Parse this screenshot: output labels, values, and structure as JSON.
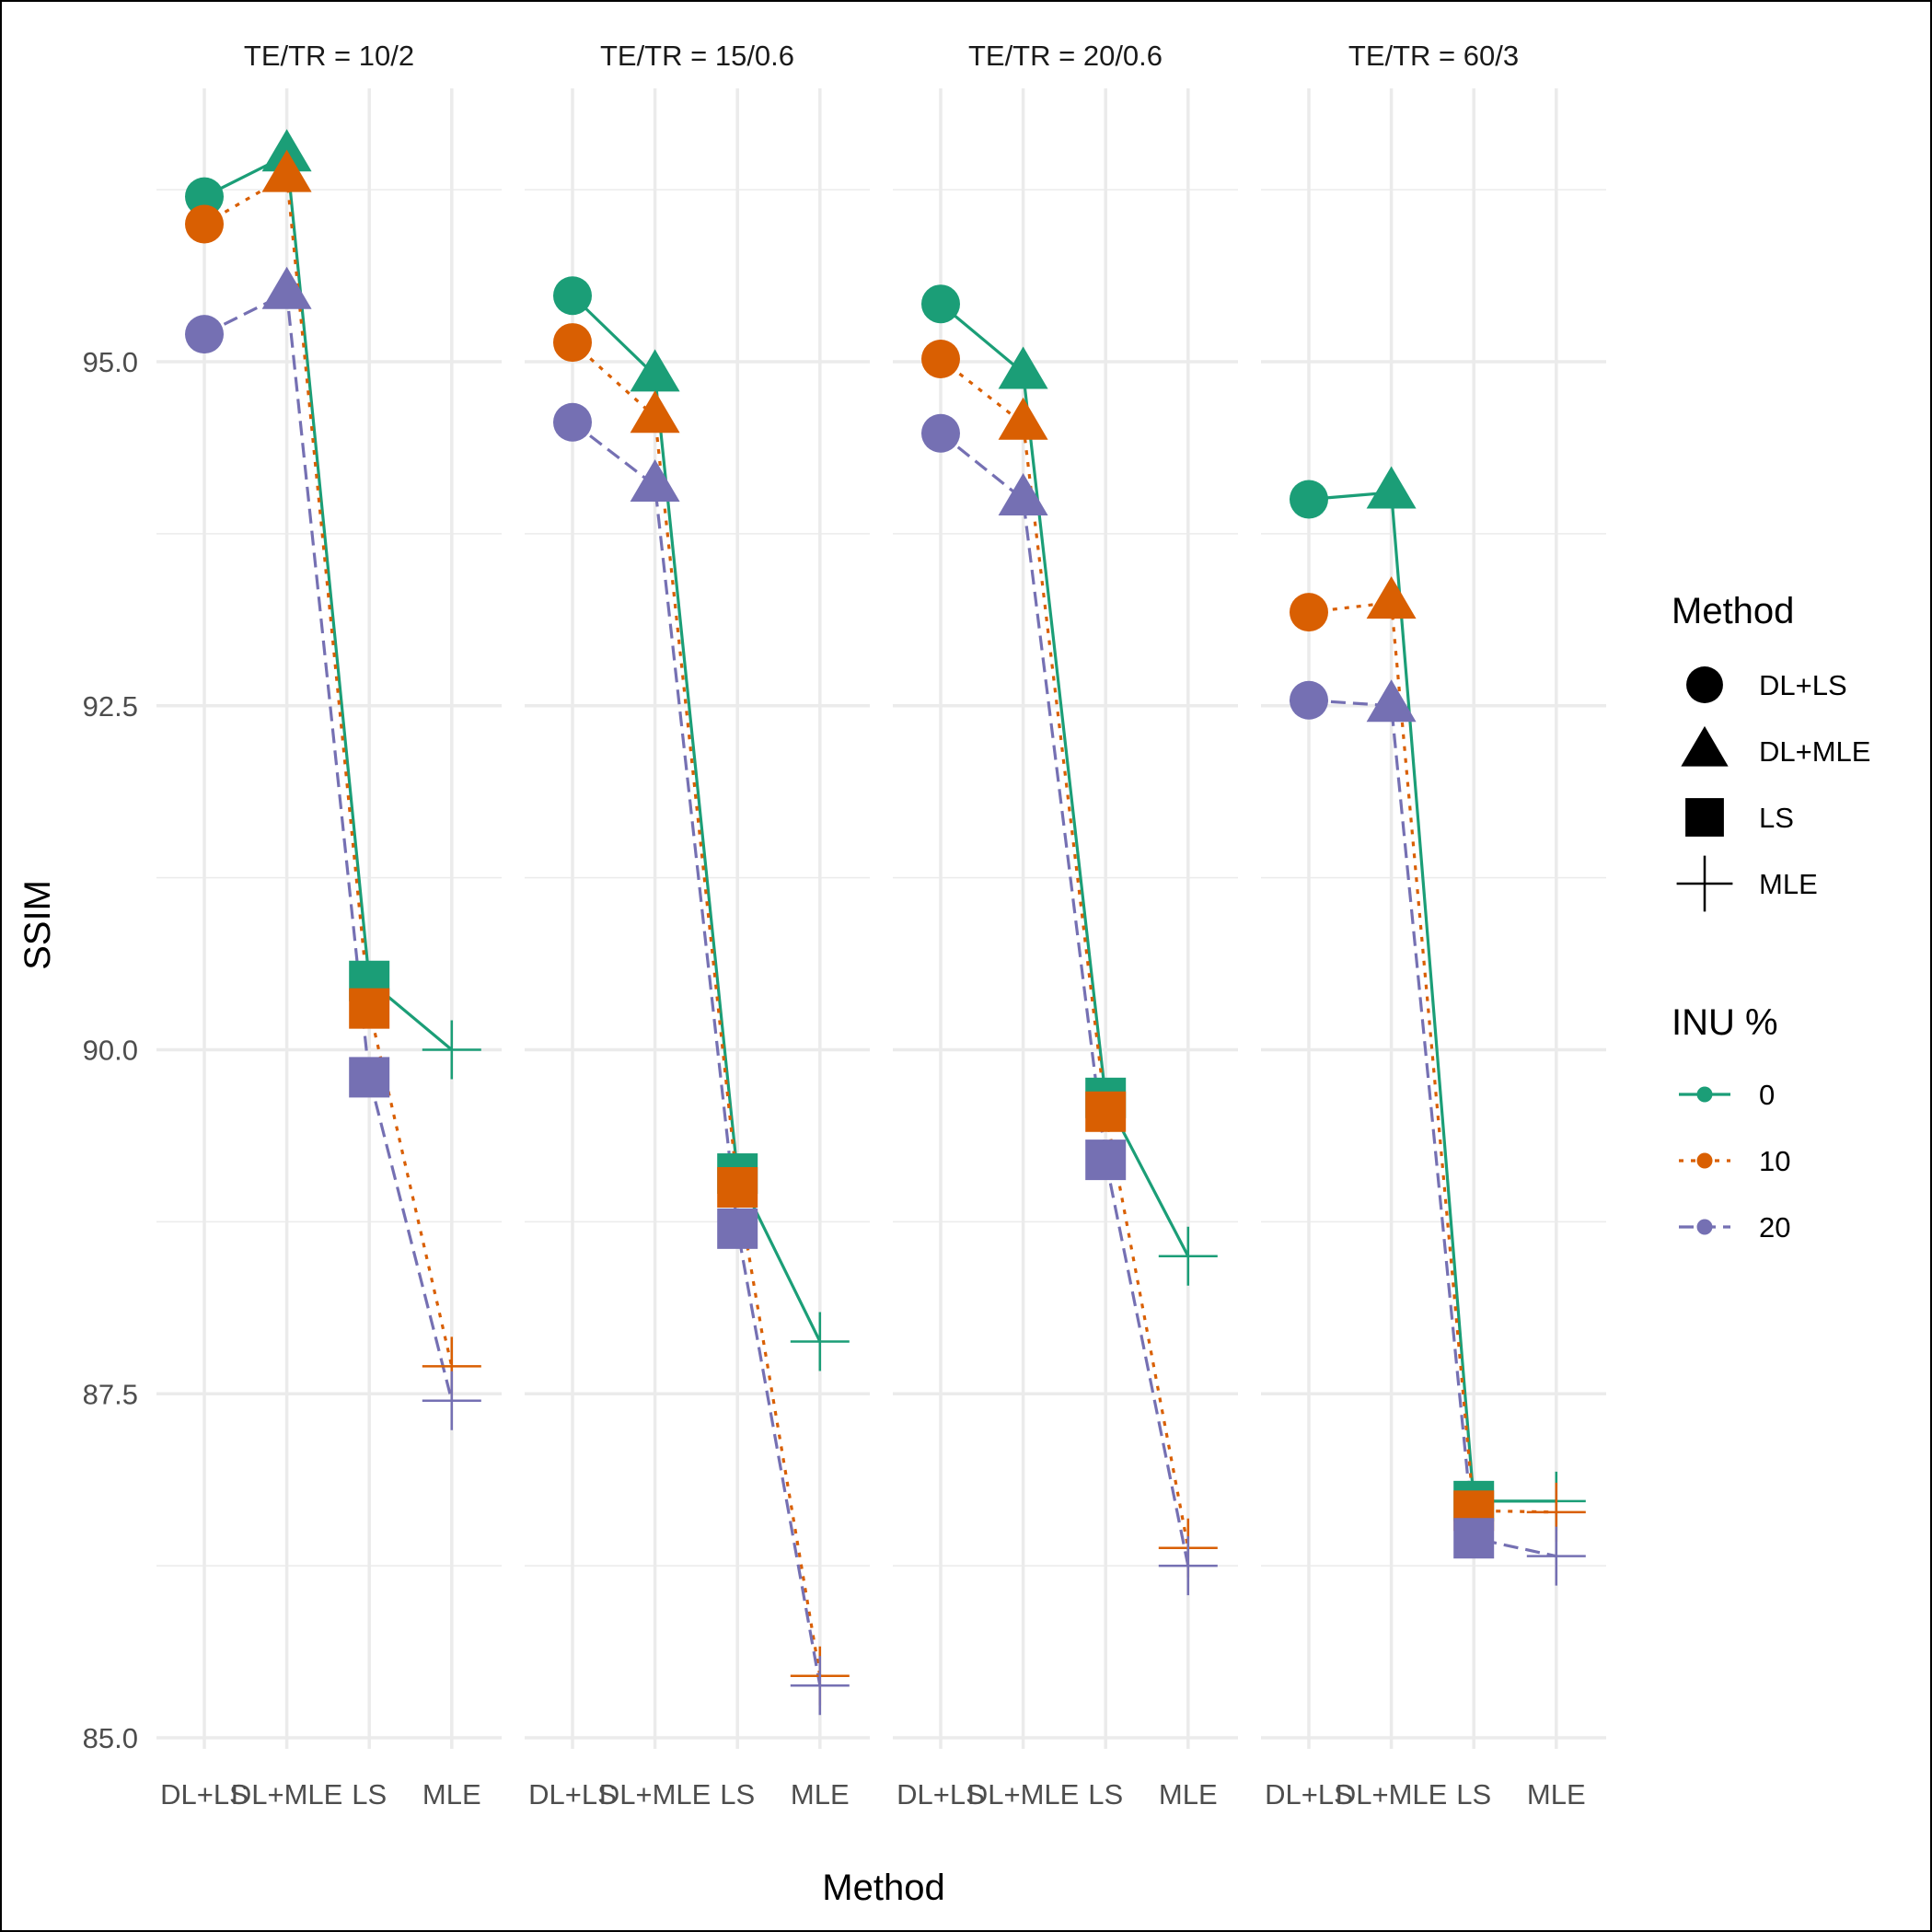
{
  "chart_data": {
    "type": "line",
    "xlabel": "Method",
    "ylabel": "SSIM",
    "categories": [
      "DL+LS",
      "DL+MLE",
      "LS",
      "MLE"
    ],
    "ylim": [
      85.0,
      96.7
    ],
    "yticks": [
      85.0,
      87.5,
      90.0,
      92.5,
      95.0
    ],
    "ytick_labels": [
      "85.0",
      "87.5",
      "90.0",
      "92.5",
      "95.0"
    ],
    "grid": true,
    "colors": {
      "0": "#1b9e77",
      "10": "#d95f02",
      "20": "#7570b3"
    },
    "facets": [
      {
        "label": "TE/TR = 10/2",
        "series": [
          {
            "name": "0",
            "values": [
              96.2,
              96.5,
              90.5,
              90.0
            ]
          },
          {
            "name": "10",
            "values": [
              96.0,
              96.35,
              90.3,
              87.7
            ]
          },
          {
            "name": "20",
            "values": [
              95.2,
              95.5,
              89.8,
              87.45
            ]
          }
        ]
      },
      {
        "label": "TE/TR = 15/0.6",
        "series": [
          {
            "name": "0",
            "values": [
              95.48,
              94.9,
              89.1,
              87.88
            ]
          },
          {
            "name": "10",
            "values": [
              95.14,
              94.6,
              89.0,
              85.45
            ]
          },
          {
            "name": "20",
            "values": [
              94.56,
              94.1,
              88.7,
              85.38
            ]
          }
        ]
      },
      {
        "label": "TE/TR = 20/0.6",
        "series": [
          {
            "name": "0",
            "values": [
              95.42,
              94.92,
              89.65,
              88.5
            ]
          },
          {
            "name": "10",
            "values": [
              95.02,
              94.55,
              89.55,
              86.38
            ]
          },
          {
            "name": "20",
            "values": [
              94.48,
              94.0,
              89.2,
              86.25
            ]
          }
        ]
      },
      {
        "label": "TE/TR = 60/3",
        "series": [
          {
            "name": "0",
            "values": [
              94.0,
              94.05,
              86.72,
              86.72
            ]
          },
          {
            "name": "10",
            "values": [
              93.18,
              93.25,
              86.65,
              86.64
            ]
          },
          {
            "name": "20",
            "values": [
              92.54,
              92.5,
              86.45,
              86.32
            ]
          }
        ]
      }
    ],
    "legend": {
      "placement": "right",
      "method_title": "Method",
      "method_items": [
        {
          "label": "DL+LS",
          "shape": "circle"
        },
        {
          "label": "DL+MLE",
          "shape": "triangle"
        },
        {
          "label": "LS",
          "shape": "square"
        },
        {
          "label": "MLE",
          "shape": "cross"
        }
      ],
      "inu_title": "INU %",
      "inu_items": [
        {
          "label": "0",
          "line": "solid"
        },
        {
          "label": "10",
          "line": "dotted"
        },
        {
          "label": "20",
          "line": "dashed"
        }
      ]
    }
  }
}
